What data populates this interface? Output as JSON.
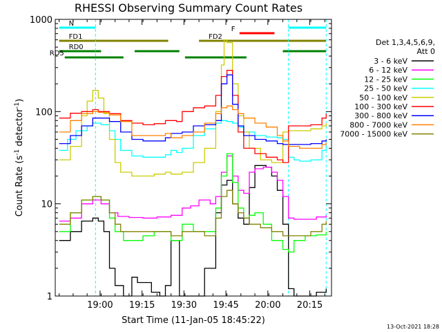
{
  "chart_data": {
    "type": "line",
    "title": "RHESSI Observing Summary Count Rates",
    "xlabel": "Start Time (11-Jan-05 18:45:22)",
    "ylabel_main": "Count Rate (s",
    "ylabel_sup1": "-1",
    "ylabel_mid": " detector",
    "ylabel_sup2": "-1",
    "ylabel_end": ")",
    "x_units": "minutes after 18:45:22",
    "x_range": [
      -1.4,
      97.4
    ],
    "ylim": [
      1,
      1000
    ],
    "y_scale": "log",
    "x_ticks": [
      {
        "x": 14.63,
        "label": "19:00"
      },
      {
        "x": 29.63,
        "label": "19:15"
      },
      {
        "x": 44.63,
        "label": "19:30"
      },
      {
        "x": 59.63,
        "label": "19:45"
      },
      {
        "x": 74.63,
        "label": "20:00"
      },
      {
        "x": 89.63,
        "label": "20:15"
      }
    ],
    "y_ticks": [
      {
        "y": 1,
        "label": "1"
      },
      {
        "y": 10,
        "label": "10"
      },
      {
        "y": 100,
        "label": "100"
      },
      {
        "y": 1000,
        "label": "1000"
      }
    ],
    "legend_header": [
      "Det 1,3,4,5,6,9,",
      "Att 0"
    ],
    "legend_position": "right",
    "date_stamp": "13-Oct-2021 18:28",
    "annotations": [
      {
        "label": "N",
        "color": "#00ffff",
        "x1": 0,
        "x2": 13,
        "level": 1
      },
      {
        "label": "",
        "color": "#00ffff",
        "x1": 82,
        "x2": 95.5,
        "level": 1
      },
      {
        "label": "F",
        "color": "#ff0000",
        "x1": 64.5,
        "x2": 77,
        "level": 2
      },
      {
        "label": "FD1",
        "color": "#808000",
        "x1": 0,
        "x2": 39,
        "level": 3
      },
      {
        "label": "FD2",
        "color": "#808000",
        "x1": 50,
        "x2": 95.5,
        "level": 3
      },
      {
        "label": "RD0",
        "color": "#008000",
        "x1": 0,
        "x2": 15,
        "level": 4
      },
      {
        "label": "",
        "color": "#008000",
        "x1": 27,
        "x2": 43,
        "level": 4
      },
      {
        "label": "RD5",
        "color": "#008000",
        "x1": 2,
        "x2": 23,
        "level": 5
      },
      {
        "label": "",
        "color": "#008000",
        "x1": 45,
        "x2": 67,
        "level": 5
      },
      {
        "label": "",
        "color": "#008000",
        "x1": 80,
        "x2": 95.5,
        "level": 4
      }
    ],
    "dashed_lines_x": [
      13,
      82,
      95.5
    ],
    "series": [
      {
        "name": "3 - 6 keV",
        "color": "#000000",
        "points": [
          [
            0,
            4
          ],
          [
            4,
            5
          ],
          [
            8,
            6.5
          ],
          [
            12,
            7
          ],
          [
            14,
            6.5
          ],
          [
            16,
            5
          ],
          [
            18,
            2
          ],
          [
            20,
            1.3
          ],
          [
            23,
            1
          ],
          [
            26,
            1.6
          ],
          [
            28,
            1.4
          ],
          [
            30,
            1.4
          ],
          [
            33,
            1.1
          ],
          [
            36,
            1
          ],
          [
            38,
            1.3
          ],
          [
            40,
            4
          ],
          [
            43,
            1
          ],
          [
            45,
            1
          ],
          [
            48,
            1
          ],
          [
            52,
            2
          ],
          [
            56,
            8
          ],
          [
            58,
            16
          ],
          [
            60,
            18
          ],
          [
            62,
            10
          ],
          [
            64,
            7
          ],
          [
            66,
            6
          ],
          [
            68,
            15
          ],
          [
            70,
            26
          ],
          [
            74,
            25
          ],
          [
            76,
            20
          ],
          [
            78,
            14
          ],
          [
            80,
            6
          ],
          [
            82,
            1.2
          ],
          [
            84,
            1
          ],
          [
            86,
            1
          ],
          [
            88,
            1
          ],
          [
            92,
            1.1
          ],
          [
            95.5,
            1.2
          ]
        ]
      },
      {
        "name": "6 - 12 keV",
        "color": "#ff00ff",
        "points": [
          [
            0,
            6.5
          ],
          [
            4,
            7
          ],
          [
            8,
            10
          ],
          [
            12,
            11
          ],
          [
            15,
            10
          ],
          [
            18,
            8
          ],
          [
            21,
            7.3
          ],
          [
            25,
            7.1
          ],
          [
            30,
            7
          ],
          [
            35,
            7.2
          ],
          [
            40,
            7.5
          ],
          [
            44,
            9
          ],
          [
            47,
            9.5
          ],
          [
            50,
            11
          ],
          [
            54,
            10
          ],
          [
            56,
            12
          ],
          [
            58,
            22
          ],
          [
            60,
            33
          ],
          [
            62,
            20
          ],
          [
            64,
            14
          ],
          [
            66,
            13
          ],
          [
            68,
            22
          ],
          [
            70,
            24
          ],
          [
            73,
            25
          ],
          [
            76,
            22
          ],
          [
            78,
            18
          ],
          [
            80,
            12
          ],
          [
            82,
            7
          ],
          [
            84,
            6.8
          ],
          [
            88,
            6.8
          ],
          [
            92,
            7.2
          ],
          [
            95.5,
            7.5
          ]
        ]
      },
      {
        "name": "12 - 25 keV",
        "color": "#00ff00",
        "points": [
          [
            0,
            5
          ],
          [
            4,
            8
          ],
          [
            8,
            11
          ],
          [
            12,
            12
          ],
          [
            15,
            11
          ],
          [
            18,
            7
          ],
          [
            20,
            5
          ],
          [
            23,
            4
          ],
          [
            26,
            4
          ],
          [
            30,
            4.5
          ],
          [
            34,
            5
          ],
          [
            38,
            5
          ],
          [
            40,
            4
          ],
          [
            44,
            6
          ],
          [
            48,
            5
          ],
          [
            52,
            5
          ],
          [
            56,
            9
          ],
          [
            58,
            20
          ],
          [
            60,
            35
          ],
          [
            62,
            17
          ],
          [
            64,
            9
          ],
          [
            66,
            7
          ],
          [
            68,
            7.5
          ],
          [
            70,
            8
          ],
          [
            73,
            6
          ],
          [
            76,
            4
          ],
          [
            80,
            3.2
          ],
          [
            82,
            3
          ],
          [
            84,
            4
          ],
          [
            88,
            4.5
          ],
          [
            92,
            4.6
          ],
          [
            95.5,
            5
          ]
        ]
      },
      {
        "name": "25 - 50 keV",
        "color": "#00ffff",
        "points": [
          [
            0,
            38
          ],
          [
            3,
            50
          ],
          [
            6,
            62
          ],
          [
            10,
            70
          ],
          [
            12,
            75
          ],
          [
            15,
            72
          ],
          [
            18,
            62
          ],
          [
            20,
            50
          ],
          [
            22,
            38
          ],
          [
            26,
            33
          ],
          [
            30,
            32
          ],
          [
            34,
            32
          ],
          [
            38,
            34
          ],
          [
            40,
            38
          ],
          [
            42,
            36
          ],
          [
            44,
            40
          ],
          [
            48,
            55
          ],
          [
            52,
            65
          ],
          [
            56,
            75
          ],
          [
            58,
            80
          ],
          [
            60,
            78
          ],
          [
            62,
            75
          ],
          [
            64,
            68
          ],
          [
            66,
            60
          ],
          [
            70,
            55
          ],
          [
            74,
            53
          ],
          [
            78,
            52
          ],
          [
            80,
            50
          ],
          [
            82,
            32
          ],
          [
            84,
            30
          ],
          [
            86,
            29
          ],
          [
            90,
            30
          ],
          [
            94,
            38
          ],
          [
            95.5,
            48
          ]
        ]
      },
      {
        "name": "50 - 100 keV",
        "color": "#cccc00",
        "points": [
          [
            0,
            30
          ],
          [
            4,
            42
          ],
          [
            8,
            90
          ],
          [
            10,
            130
          ],
          [
            12,
            170
          ],
          [
            14,
            140
          ],
          [
            16,
            95
          ],
          [
            18,
            50
          ],
          [
            20,
            28
          ],
          [
            22,
            22
          ],
          [
            26,
            20
          ],
          [
            30,
            20
          ],
          [
            34,
            21
          ],
          [
            38,
            22
          ],
          [
            40,
            21
          ],
          [
            44,
            22
          ],
          [
            48,
            28
          ],
          [
            52,
            40
          ],
          [
            56,
            100
          ],
          [
            58,
            320
          ],
          [
            59,
            600
          ],
          [
            60,
            560
          ],
          [
            62,
            200
          ],
          [
            64,
            90
          ],
          [
            66,
            60
          ],
          [
            68,
            40
          ],
          [
            72,
            30
          ],
          [
            76,
            28
          ],
          [
            80,
            60
          ],
          [
            82,
            62
          ],
          [
            86,
            62
          ],
          [
            90,
            65
          ],
          [
            94,
            70
          ],
          [
            95.5,
            75
          ]
        ]
      },
      {
        "name": "100 - 300 keV",
        "color": "#ff0000",
        "points": [
          [
            0,
            85
          ],
          [
            2,
            85
          ],
          [
            4,
            96
          ],
          [
            8,
            100
          ],
          [
            12,
            105
          ],
          [
            14,
            100
          ],
          [
            18,
            95
          ],
          [
            22,
            80
          ],
          [
            26,
            75
          ],
          [
            30,
            72
          ],
          [
            34,
            74
          ],
          [
            38,
            80
          ],
          [
            40,
            80
          ],
          [
            42,
            78
          ],
          [
            44,
            100
          ],
          [
            48,
            110
          ],
          [
            52,
            115
          ],
          [
            56,
            150
          ],
          [
            58,
            240
          ],
          [
            60,
            280
          ],
          [
            62,
            150
          ],
          [
            64,
            60
          ],
          [
            66,
            40
          ],
          [
            70,
            35
          ],
          [
            74,
            32
          ],
          [
            78,
            30
          ],
          [
            80,
            28
          ],
          [
            82,
            70
          ],
          [
            86,
            70
          ],
          [
            90,
            72
          ],
          [
            94,
            85
          ],
          [
            95.5,
            95
          ]
        ]
      },
      {
        "name": "300 - 800 keV",
        "color": "#0000ff",
        "points": [
          [
            0,
            45
          ],
          [
            4,
            55
          ],
          [
            8,
            70
          ],
          [
            12,
            85
          ],
          [
            14,
            85
          ],
          [
            18,
            78
          ],
          [
            22,
            60
          ],
          [
            26,
            50
          ],
          [
            30,
            48
          ],
          [
            34,
            48
          ],
          [
            38,
            52
          ],
          [
            40,
            58
          ],
          [
            44,
            60
          ],
          [
            48,
            70
          ],
          [
            52,
            72
          ],
          [
            56,
            80
          ],
          [
            58,
            200
          ],
          [
            60,
            250
          ],
          [
            62,
            120
          ],
          [
            64,
            70
          ],
          [
            66,
            55
          ],
          [
            70,
            50
          ],
          [
            74,
            48
          ],
          [
            78,
            45
          ],
          [
            80,
            44
          ],
          [
            82,
            44
          ],
          [
            86,
            44
          ],
          [
            90,
            45
          ],
          [
            94,
            48
          ],
          [
            95.5,
            50
          ]
        ]
      },
      {
        "name": "800 - 7000 keV",
        "color": "#ff8000",
        "points": [
          [
            0,
            60
          ],
          [
            4,
            80
          ],
          [
            8,
            95
          ],
          [
            12,
            100
          ],
          [
            14,
            98
          ],
          [
            18,
            92
          ],
          [
            22,
            78
          ],
          [
            26,
            55
          ],
          [
            30,
            55
          ],
          [
            34,
            55
          ],
          [
            38,
            58
          ],
          [
            40,
            52
          ],
          [
            44,
            55
          ],
          [
            48,
            60
          ],
          [
            52,
            75
          ],
          [
            56,
            95
          ],
          [
            58,
            110
          ],
          [
            60,
            115
          ],
          [
            62,
            105
          ],
          [
            64,
            95
          ],
          [
            66,
            85
          ],
          [
            70,
            75
          ],
          [
            74,
            68
          ],
          [
            78,
            55
          ],
          [
            80,
            48
          ],
          [
            82,
            42
          ],
          [
            86,
            40
          ],
          [
            90,
            40
          ],
          [
            94,
            44
          ],
          [
            95.5,
            46
          ]
        ]
      },
      {
        "name": "7000 - 15000 keV",
        "color": "#808000",
        "points": [
          [
            0,
            6
          ],
          [
            4,
            8
          ],
          [
            8,
            11
          ],
          [
            12,
            12
          ],
          [
            15,
            11
          ],
          [
            18,
            8
          ],
          [
            20,
            6
          ],
          [
            22,
            5
          ],
          [
            26,
            5
          ],
          [
            30,
            5
          ],
          [
            34,
            5
          ],
          [
            38,
            5
          ],
          [
            40,
            4.5
          ],
          [
            44,
            5
          ],
          [
            48,
            5
          ],
          [
            52,
            4.5
          ],
          [
            56,
            7
          ],
          [
            58,
            12
          ],
          [
            60,
            14
          ],
          [
            62,
            10
          ],
          [
            64,
            8
          ],
          [
            66,
            7
          ],
          [
            68,
            6
          ],
          [
            72,
            5.5
          ],
          [
            76,
            5
          ],
          [
            80,
            4.5
          ],
          [
            82,
            4.5
          ],
          [
            86,
            4.5
          ],
          [
            90,
            5
          ],
          [
            94,
            6
          ],
          [
            95.5,
            6.5
          ]
        ]
      }
    ]
  }
}
